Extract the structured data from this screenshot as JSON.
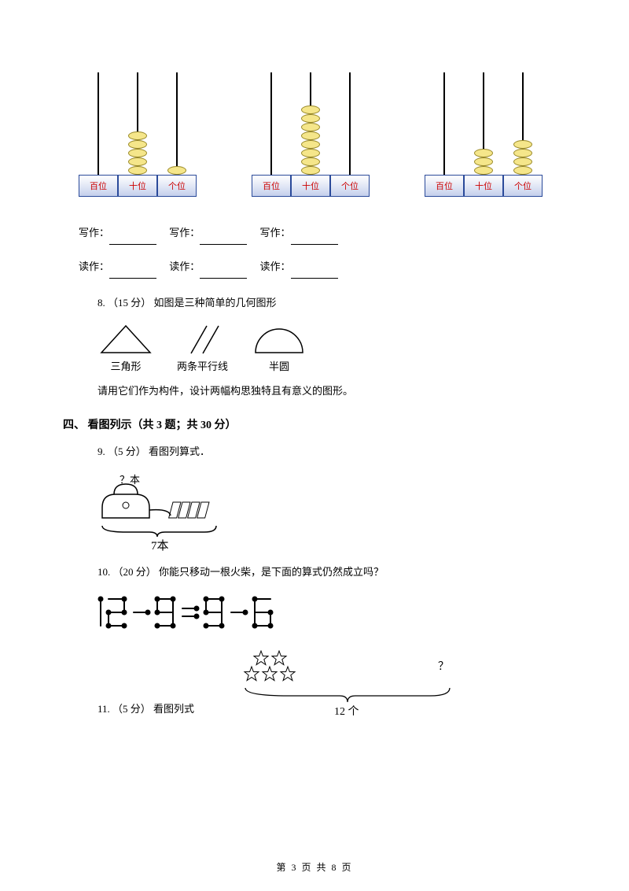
{
  "colors": {
    "bead_fill": "#f5e68a",
    "bead_stroke": "#9a8a2a",
    "box_stroke": "#2a4a9a",
    "box_grad_light": "#ffffff",
    "box_grad_dark": "#c5d0ec",
    "label_color": "#cc0000",
    "text_color": "#000000",
    "bg": "#ffffff"
  },
  "abacus": {
    "places": [
      "百位",
      "十位",
      "个位"
    ],
    "groups": [
      {
        "counts": [
          0,
          5,
          1
        ]
      },
      {
        "counts": [
          0,
          8,
          0
        ]
      },
      {
        "counts": [
          0,
          3,
          4
        ]
      }
    ]
  },
  "fill_section": {
    "write_label": "写作：",
    "read_label": "读作："
  },
  "q8": {
    "prefix_num": "8.",
    "points": "（15 分）",
    "stem": "如图是三种简单的几何图形",
    "shapes": {
      "triangle": "三角形",
      "parallel": "两条平行线",
      "semicircle": "半圆"
    },
    "instruction": "请用它们作为构件，设计两幅构思独特且有意义的图形。"
  },
  "section4": {
    "heading": "四、 看图列示（共 3 题；共 30 分）"
  },
  "q9": {
    "prefix_num": "9.",
    "points": "（5 分）",
    "stem": "看图列算式．",
    "figure": {
      "top_label": "？本",
      "bottom_label": "7本"
    }
  },
  "q10": {
    "prefix_num": "10.",
    "points": "（20 分）",
    "stem": "你能只移动一根火柴，是下面的算式仍然成立吗？",
    "equation_text": "12-9=9-6"
  },
  "q11": {
    "prefix_num": "11.",
    "points": "（5 分）",
    "stem": "看图列式",
    "figure": {
      "count_label": "12 个",
      "question_mark": "？"
    }
  },
  "footer": "第 3 页 共 8 页"
}
